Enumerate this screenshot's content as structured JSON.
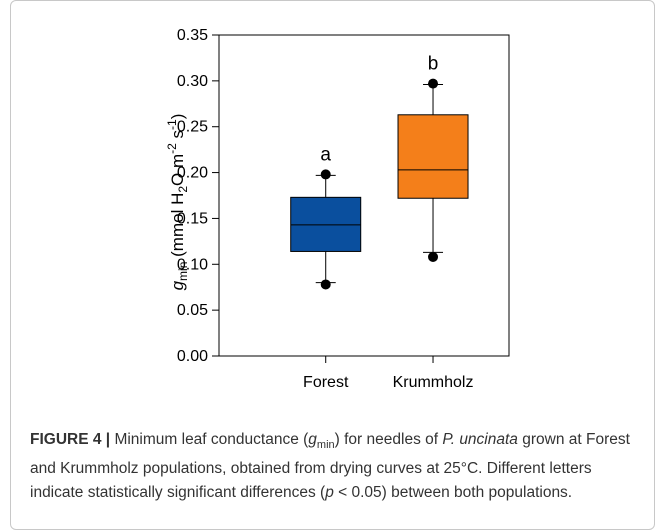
{
  "figure": {
    "label": "FIGURE 4 |",
    "caption_parts": {
      "p1": "Minimum leaf conductance (",
      "g": "g",
      "min": "min",
      "p2": ") for needles of ",
      "species": "P. uncinata",
      "p3": " grown at Forest and Krummholz populations, obtained from drying curves at 25°C. Different letters indicate statistically significant differences (",
      "p": "p",
      "p4": " < 0.05) between both populations."
    }
  },
  "chart_data": {
    "type": "box",
    "title": "",
    "xlabel": "",
    "ylabel_parts": {
      "g": "g",
      "min": "min",
      "open": "(mmol H",
      "two": "2",
      "o": "O m",
      "neg2": "-2",
      "s": " s",
      "neg1": "-1",
      "close": ")"
    },
    "ylim": [
      0,
      0.35
    ],
    "yticks": [
      "0.00",
      "0.05",
      "0.10",
      "0.15",
      "0.20",
      "0.25",
      "0.30",
      "0.35"
    ],
    "grid": false,
    "categories": [
      "Forest",
      "Krummholz"
    ],
    "boxes": [
      {
        "name": "Forest",
        "whisker_low": 0.08,
        "q1": 0.114,
        "median": 0.143,
        "q3": 0.173,
        "whisker_high": 0.197,
        "outliers": [
          0.078,
          0.198
        ],
        "letter": "a",
        "color": "#0a4f9e"
      },
      {
        "name": "Krummholz",
        "whisker_low": 0.113,
        "q1": 0.172,
        "median": 0.203,
        "q3": 0.263,
        "whisker_high": 0.296,
        "outliers": [
          0.108,
          0.297
        ],
        "letter": "b",
        "color": "#f47f1a"
      }
    ]
  }
}
